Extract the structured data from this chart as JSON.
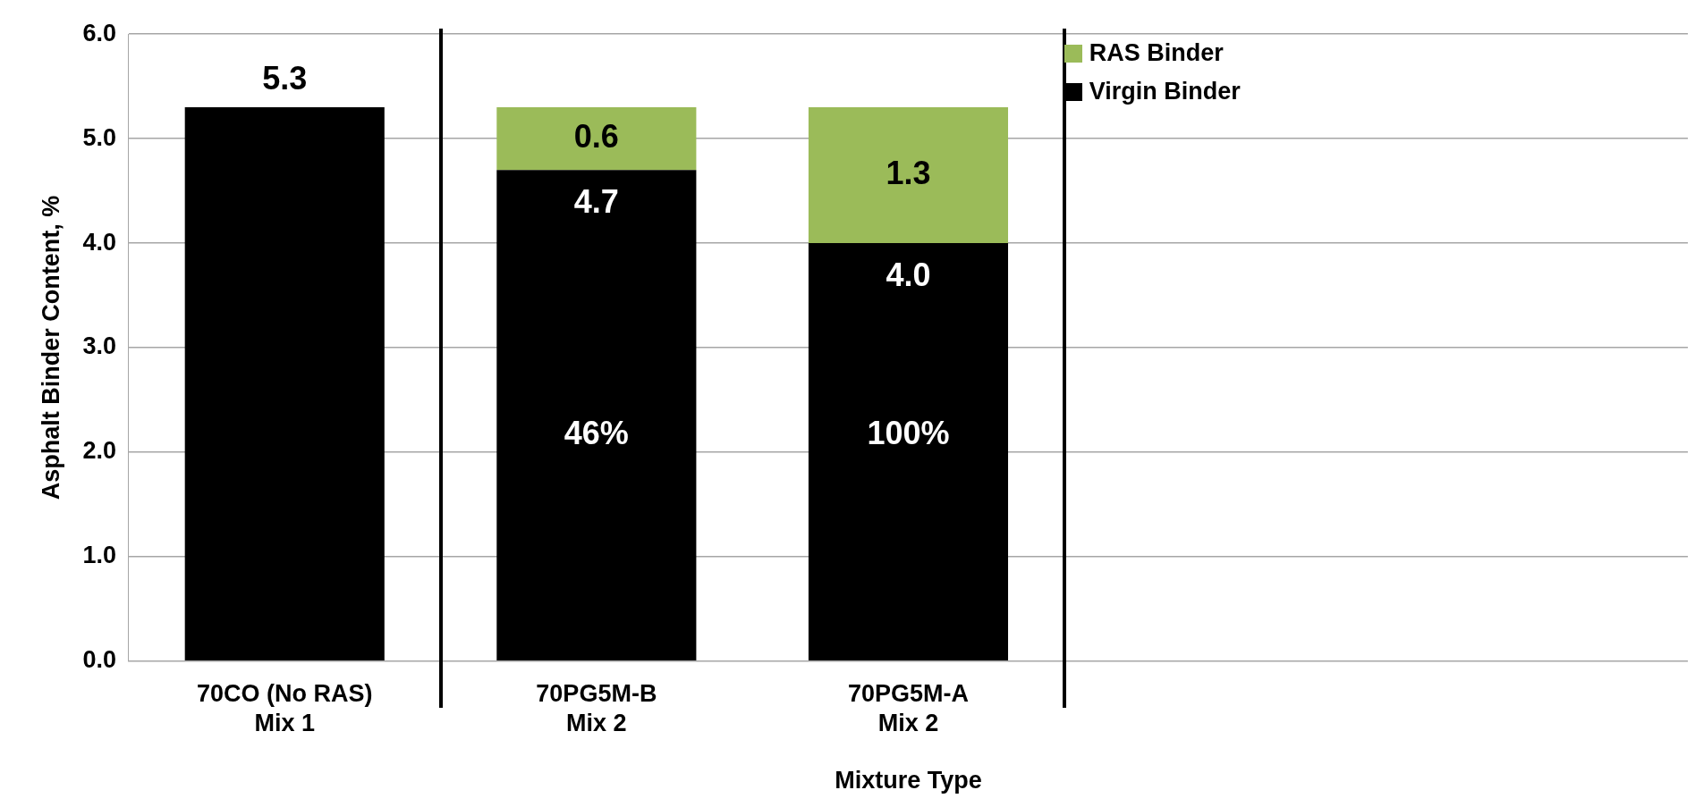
{
  "chart_data": {
    "type": "bar",
    "stacked": true,
    "xlabel": "Mixture Type",
    "ylabel": "Asphalt Binder Content, %",
    "categories": [
      "70CO (No RAS)\nMix 1",
      "70PG5M-B\nMix 2",
      "70PG5M-A\nMix 2",
      null,
      null
    ],
    "series": [
      {
        "name": "Virgin Binder",
        "color": "#000000",
        "values": [
          5.3,
          4.7,
          4.0,
          null,
          null
        ],
        "value_labels": [
          "5.3",
          "4.7",
          "4.0",
          null,
          null
        ]
      },
      {
        "name": "RAS Binder",
        "color": "#9bbb59",
        "values": [
          null,
          0.6,
          1.3,
          null,
          null
        ],
        "value_labels": [
          null,
          "0.6",
          "1.3",
          null,
          null
        ]
      }
    ],
    "ylim": [
      0,
      6
    ],
    "yticks": [
      {
        "value": 0,
        "label": "0.0"
      },
      {
        "value": 1,
        "label": "1.0"
      },
      {
        "value": 2,
        "label": "2.0"
      },
      {
        "value": 3,
        "label": "3.0"
      },
      {
        "value": 4,
        "label": "4.0"
      },
      {
        "value": 5,
        "label": "5.0"
      },
      {
        "value": 6,
        "label": "6.0"
      }
    ],
    "grid": "y",
    "legend": "top right",
    "annotations": [
      "46%",
      "100%"
    ]
  }
}
